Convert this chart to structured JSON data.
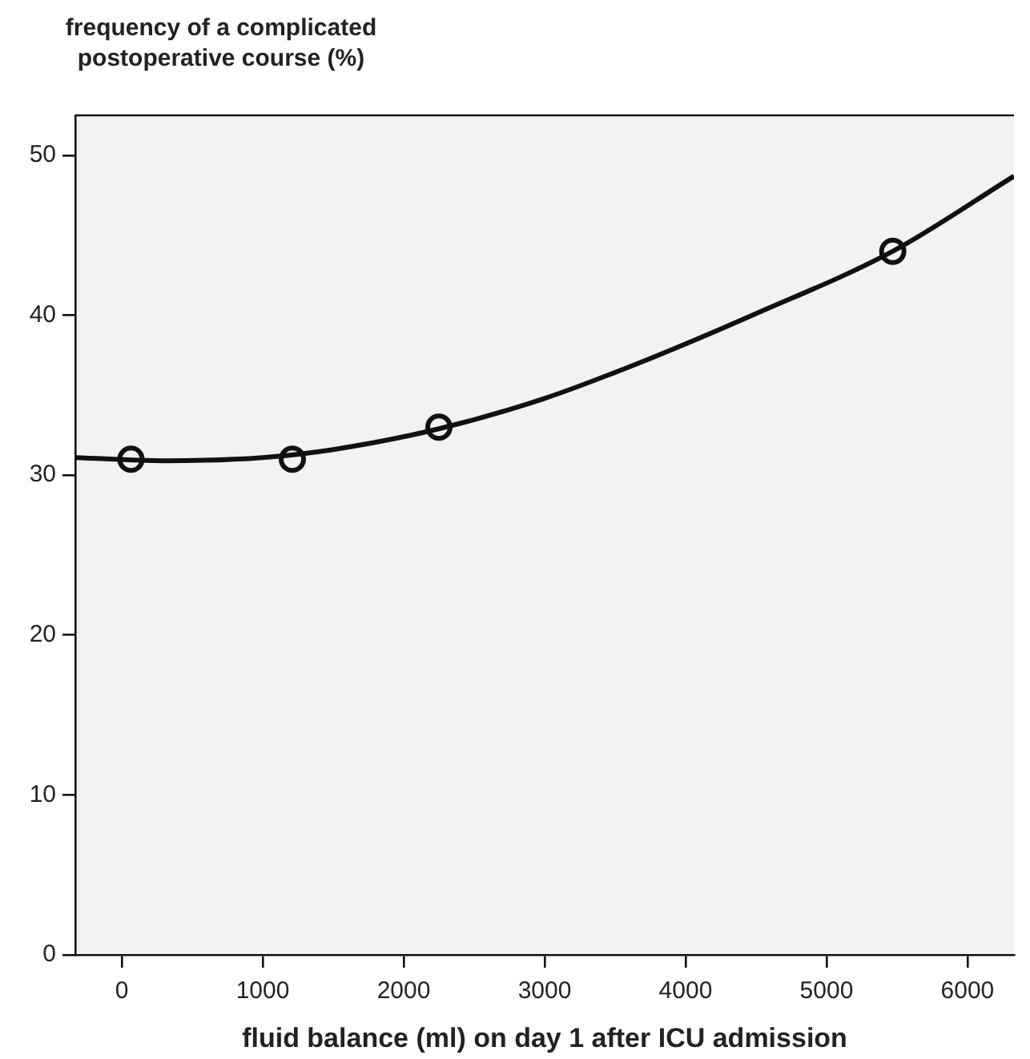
{
  "chart_data": {
    "type": "scatter",
    "ylabel": "frequency of a complicated\npostoperative course (%)",
    "xlabel": "fluid balance (ml) on day 1 after ICU admission",
    "xlim": [
      -330,
      6330
    ],
    "xticks": [
      0,
      1000,
      2000,
      3000,
      4000,
      5000,
      6000
    ],
    "ylim": [
      0,
      52.5
    ],
    "yticks": [
      0,
      10,
      20,
      30,
      40,
      50
    ],
    "grid": false,
    "legend": false,
    "series": [
      {
        "type": "line",
        "color": "#111111",
        "marker": "none",
        "line_style": "solid",
        "x": [
          -325,
          300,
          1000,
          1500,
          2250,
          3000,
          3750,
          4500,
          5470,
          6330
        ],
        "values": [
          31.1,
          30.9,
          31.1,
          31.6,
          32.9,
          34.8,
          37.3,
          40.1,
          44.0,
          48.7
        ]
      },
      {
        "type": "scatter",
        "color": "#111111",
        "marker": "circle",
        "x": [
          65,
          1210,
          2250,
          5470
        ],
        "values": [
          31.0,
          31.0,
          33.0,
          44.0
        ]
      }
    ]
  }
}
